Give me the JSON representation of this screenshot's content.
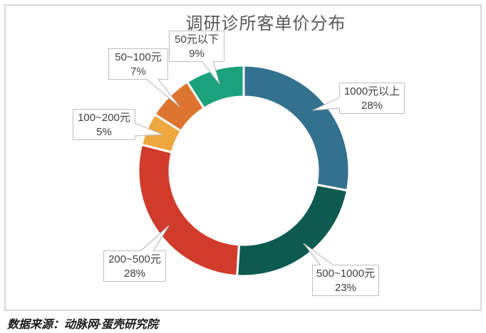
{
  "title": "调研诊所客单价分布",
  "source_note": "数据来源：动脉网·蛋壳研究院",
  "chart_data": {
    "type": "pie",
    "subtype": "donut",
    "title": "调研诊所客单价分布",
    "unit": "percent",
    "start_angle_deg": 0,
    "direction": "clockwise",
    "hole_ratio": 0.7,
    "legend_position": "none",
    "grid": false,
    "segments": [
      {
        "label": "1000元以上",
        "value": 28,
        "percent_text": "28%",
        "color": "#33718f"
      },
      {
        "label": "500~1000元",
        "value": 23,
        "percent_text": "23%",
        "color": "#0d5a50"
      },
      {
        "label": "200~500元",
        "value": 28,
        "percent_text": "28%",
        "color": "#d13b2b"
      },
      {
        "label": "100~200元",
        "value": 5,
        "percent_text": "5%",
        "color": "#eda73e"
      },
      {
        "label": "50~100元",
        "value": 7,
        "percent_text": "7%",
        "color": "#dd7530"
      },
      {
        "label": "50元以下",
        "value": 9,
        "percent_text": "9%",
        "color": "#1ba17c"
      }
    ],
    "colors": {
      "frame_border": "#d9d9d9",
      "callout_border": "#bfbfbf",
      "title_text": "#595959",
      "label_text": "#404040"
    }
  }
}
